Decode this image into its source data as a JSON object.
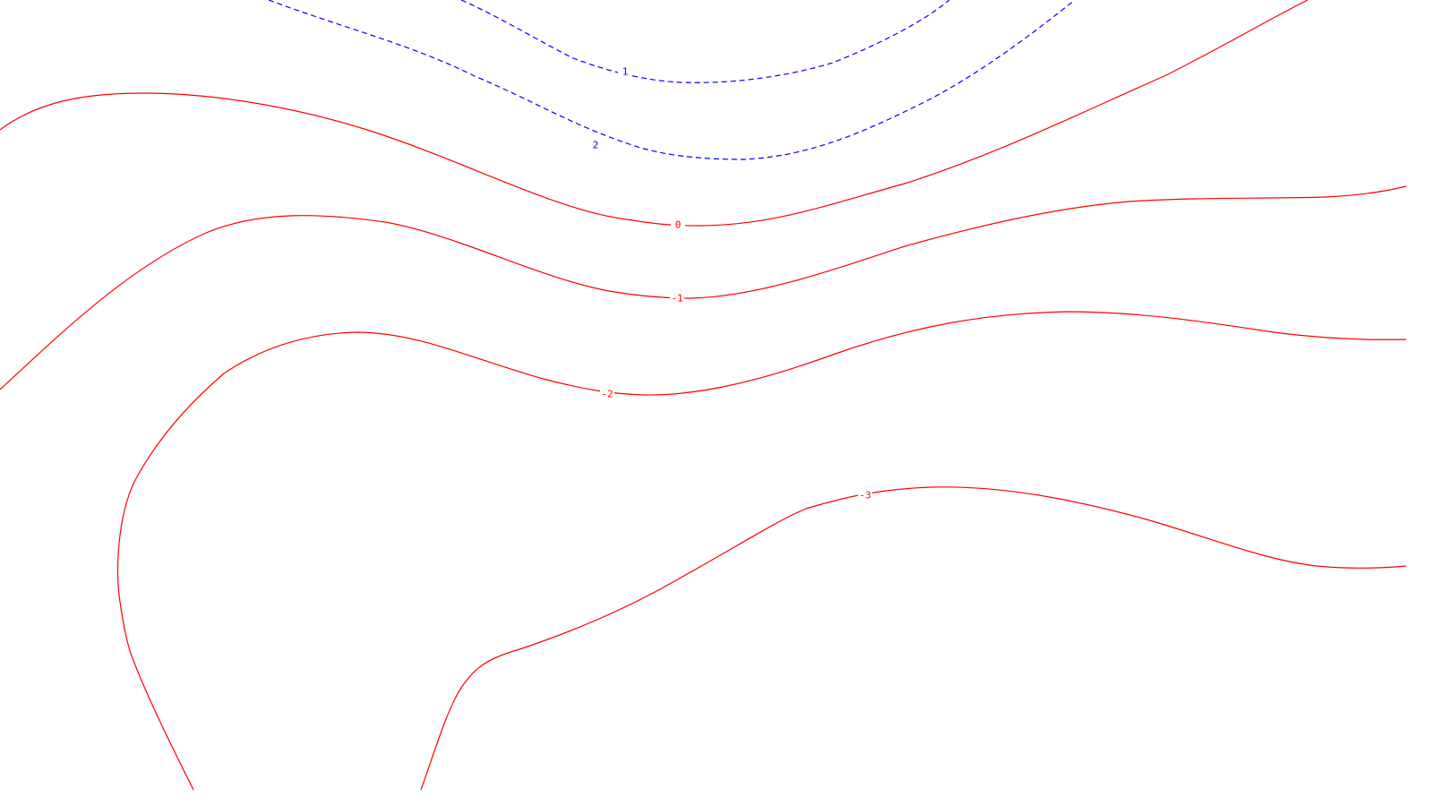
{
  "chart_data": {
    "type": "contour",
    "title": "",
    "xlabel": "",
    "ylabel": "",
    "grid": false,
    "legend": "none",
    "colors": {
      "positive": "#0000ff",
      "non_positive": "#ff0000",
      "background": "#ffffff"
    },
    "line_styles": {
      "positive": "dashed",
      "non_positive": "solid"
    },
    "levels": [
      {
        "value": 2,
        "label": "2",
        "style": "dashed",
        "color": "#0000ff"
      },
      {
        "value": 1,
        "label": "1",
        "style": "dashed",
        "color": "#0000ff"
      },
      {
        "value": 0,
        "label": "0",
        "style": "solid",
        "color": "#ff0000"
      },
      {
        "value": -1,
        "label": "-1",
        "style": "solid",
        "color": "#ff0000"
      },
      {
        "value": -2,
        "label": "-2",
        "style": "solid",
        "color": "#ff0000"
      },
      {
        "value": -3,
        "label": "-3",
        "style": "solid",
        "color": "#ff0000"
      }
    ]
  }
}
